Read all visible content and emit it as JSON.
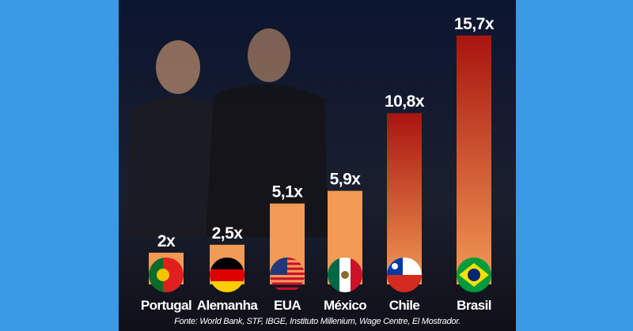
{
  "chart_data": {
    "type": "bar",
    "categories": [
      "Portugal",
      "Alemanha",
      "EUA",
      "México",
      "Chile",
      "Brasil"
    ],
    "values": [
      2,
      2.5,
      5.1,
      5.9,
      10.8,
      15.7
    ],
    "value_labels": [
      "2x",
      "2,5x",
      "5,1x",
      "5,9x",
      "10,8x",
      "15,7x"
    ],
    "colors": [
      "#f39a55",
      "#f39a55",
      "#f39a55",
      "#f39a55",
      "#a8140f",
      "#a8140f"
    ],
    "source": "Fonte: World Bank, STF, IBGE, Instituto Millenium, Wage Centre, El Mostrador."
  }
}
